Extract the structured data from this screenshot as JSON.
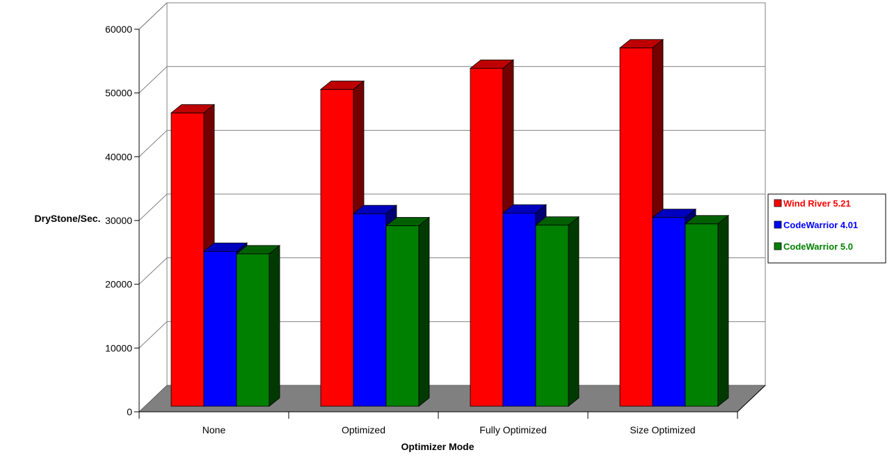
{
  "chart_data": {
    "type": "bar",
    "title": "",
    "xlabel": "Optimizer Mode",
    "ylabel": "DryStone/Sec.",
    "ylim": [
      0,
      60000
    ],
    "yticks": [
      0,
      10000,
      20000,
      30000,
      40000,
      50000,
      60000
    ],
    "grid": true,
    "three_d": true,
    "legend_position": "right",
    "categories": [
      "None",
      "Optimized",
      "Fully Optimized",
      "Size Optimized"
    ],
    "series": [
      {
        "name": "Wind River 5.21",
        "color": "#ff0000",
        "values": [
          46000,
          49700,
          53000,
          56200
        ]
      },
      {
        "name": "CodeWarrior 4.01",
        "color": "#0000ff",
        "values": [
          24300,
          30200,
          30300,
          29600
        ]
      },
      {
        "name": "CodeWarrior 5.0",
        "color": "#008000",
        "values": [
          23900,
          28300,
          28400,
          28600
        ]
      }
    ]
  }
}
